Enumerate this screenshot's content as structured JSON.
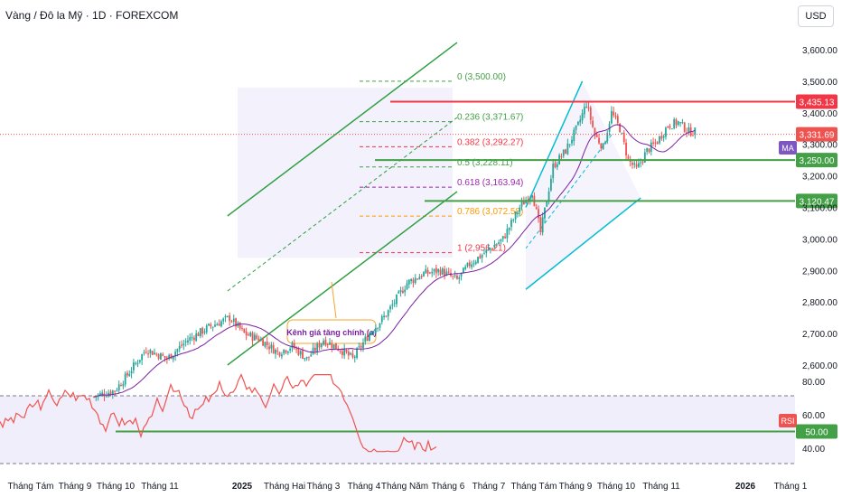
{
  "header": {
    "title": "Vàng / Đô la Mỹ · 1D · FOREXCOM",
    "currency": "USD"
  },
  "colors": {
    "up": "#26a69a",
    "down": "#ef5350",
    "channel": "#2ea043",
    "fib_line": "#00bcd4",
    "resistance": "#f23645",
    "support": "#43a047",
    "ma": "#7b1fa2",
    "rsi": "#ef5350"
  },
  "chart_data": {
    "type": "candlestick",
    "symbol": "Vàng / Đô la Mỹ",
    "interval": "1D",
    "exchange": "FOREXCOM",
    "price_axis": {
      "ticks": [
        "3,600.00",
        "3,500.00",
        "3,400.00",
        "3,300.00",
        "3,200.00",
        "3,100.00",
        "3,000.00",
        "2,900.00",
        "2,800.00",
        "2,700.00",
        "2,600.00"
      ],
      "range": [
        2550,
        3680
      ]
    },
    "time_axis": {
      "labels": [
        "Tháng Tám",
        "Tháng 9",
        "Tháng 10",
        "Tháng 11",
        "2025",
        "Tháng Hai",
        "Tháng 3",
        "Tháng 4",
        "Tháng Năm",
        "Tháng 6",
        "Tháng 7",
        "Tháng Tám",
        "Tháng 9",
        "Tháng 10",
        "Tháng 11",
        "2026",
        "Tháng 1"
      ]
    },
    "price_path": [
      [
        0,
        2500
      ],
      [
        10,
        2520
      ],
      [
        15,
        2560
      ],
      [
        25,
        2650
      ],
      [
        35,
        2620
      ],
      [
        45,
        2680
      ],
      [
        55,
        2720
      ],
      [
        65,
        2750
      ],
      [
        72,
        2700
      ],
      [
        80,
        2680
      ],
      [
        88,
        2640
      ],
      [
        95,
        2660
      ],
      [
        102,
        2620
      ],
      [
        110,
        2680
      ],
      [
        118,
        2650
      ],
      [
        124,
        2620
      ],
      [
        132,
        2700
      ],
      [
        140,
        2760
      ],
      [
        150,
        2860
      ],
      [
        158,
        2890
      ],
      [
        166,
        2900
      ],
      [
        174,
        2870
      ],
      [
        180,
        2920
      ],
      [
        188,
        2960
      ],
      [
        196,
        3000
      ],
      [
        204,
        3100
      ],
      [
        210,
        3150
      ],
      [
        214,
        3020
      ],
      [
        220,
        3230
      ],
      [
        226,
        3280
      ],
      [
        232,
        3360
      ],
      [
        236,
        3430
      ],
      [
        240,
        3330
      ],
      [
        244,
        3290
      ],
      [
        248,
        3400
      ],
      [
        252,
        3350
      ],
      [
        256,
        3250
      ],
      [
        260,
        3220
      ],
      [
        265,
        3280
      ],
      [
        270,
        3310
      ],
      [
        275,
        3360
      ],
      [
        280,
        3370
      ],
      [
        285,
        3340
      ],
      [
        288,
        3340
      ]
    ],
    "annotations": {
      "channel_label": "Kênh giá tăng chính (a)",
      "fib_levels": [
        {
          "ratio": "0",
          "price": 3500.0,
          "label": "0 (3,500.00)"
        },
        {
          "ratio": "0.236",
          "price": 3371.67,
          "label": "0.236 (3,371.67)"
        },
        {
          "ratio": "0.382",
          "price": 3292.27,
          "label": "0.382 (3,292.27)"
        },
        {
          "ratio": "0.5",
          "price": 3228.11,
          "label": "0.5 (3,228.11)"
        },
        {
          "ratio": "0.618",
          "price": 3163.94,
          "label": "0.618 (3,163.94)"
        },
        {
          "ratio": "0.786",
          "price": 3072.58,
          "label": "0.786 (3,072.58)"
        },
        {
          "ratio": "1",
          "price": 2956.21,
          "label": "1 (2,956.21)"
        }
      ],
      "horizontal_levels": [
        {
          "price": 3435.13,
          "label": "3,435.13",
          "kind": "resistance"
        },
        {
          "price": 3250.0,
          "label": "3,250.00",
          "kind": "support"
        },
        {
          "price": 3120.47,
          "label": "3,120.47",
          "kind": "support"
        }
      ],
      "current_price": {
        "price": 3331.69,
        "label": "3,331.69"
      },
      "ma_label": "MA"
    },
    "rsi": {
      "label": "RSI",
      "ticks": [
        "80.00",
        "60.00",
        "40.00"
      ],
      "value_label": "50.00",
      "level": 50,
      "range": [
        28,
        87
      ]
    }
  }
}
